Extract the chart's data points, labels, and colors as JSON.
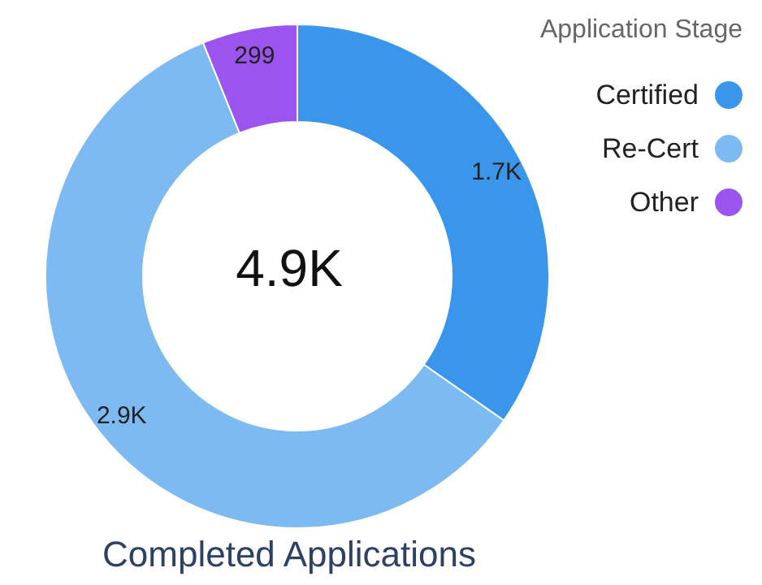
{
  "chart_data": {
    "type": "donut",
    "title": "Completed Applications",
    "legend_title": "Application Stage",
    "categories": [
      "Certified",
      "Re-Cert",
      "Other"
    ],
    "values": [
      1700,
      2900,
      299
    ],
    "value_labels": [
      "1.7K",
      "2.9K",
      "299"
    ],
    "colors": [
      "#3a96ea",
      "#7dbaf2",
      "#9b55ee"
    ],
    "annotations": [
      "4.9K"
    ],
    "legend": "top right"
  }
}
